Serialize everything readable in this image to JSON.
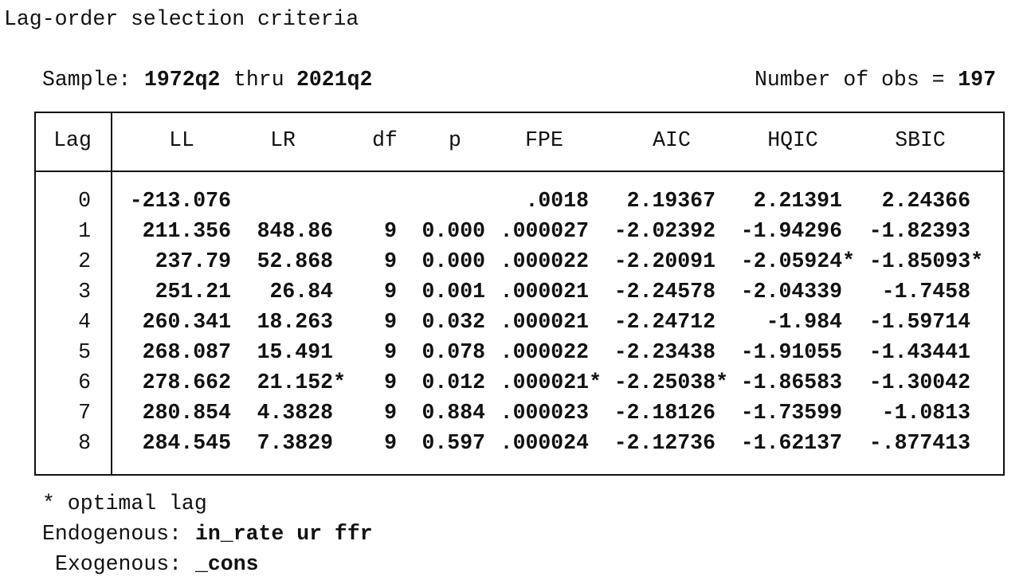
{
  "title": "Lag-order selection criteria",
  "sample": {
    "label": "Sample:",
    "start": "1972q2",
    "thru": "thru",
    "end": "2021q2"
  },
  "obs": {
    "label": "Number of obs =",
    "value": "197"
  },
  "table": {
    "headers": [
      "Lag",
      "LL",
      "LR",
      "df",
      "p",
      "FPE",
      "AIC",
      "HQIC",
      "SBIC"
    ],
    "rows": [
      [
        "0",
        "-213.076",
        null,
        null,
        null,
        ".0018",
        "2.19367",
        "2.21391",
        "2.24366"
      ],
      [
        "1",
        "211.356",
        "848.86",
        "9",
        "0.000",
        ".000027",
        "-2.02392",
        "-1.94296",
        "-1.82393"
      ],
      [
        "2",
        "237.79",
        "52.868",
        "9",
        "0.000",
        ".000022",
        "-2.20091",
        "-2.05924*",
        "-1.85093*"
      ],
      [
        "3",
        "251.21",
        "26.84",
        "9",
        "0.001",
        ".000021",
        "-2.24578",
        "-2.04339",
        "-1.7458"
      ],
      [
        "4",
        "260.341",
        "18.263",
        "9",
        "0.032",
        ".000021",
        "-2.24712",
        "-1.984",
        "-1.59714"
      ],
      [
        "5",
        "268.087",
        "15.491",
        "9",
        "0.078",
        ".000022",
        "-2.23438",
        "-1.91055",
        "-1.43441"
      ],
      [
        "6",
        "278.662",
        "21.152*",
        "9",
        "0.012",
        ".000021*",
        "-2.25038*",
        "-1.86583",
        "-1.30042"
      ],
      [
        "7",
        "280.854",
        "4.3828",
        "9",
        "0.884",
        ".000023",
        "-2.18126",
        "-1.73599",
        "-1.0813"
      ],
      [
        "8",
        "284.545",
        "7.3829",
        "9",
        "0.597",
        ".000024",
        "-2.12736",
        "-1.62137",
        "-.877413"
      ]
    ]
  },
  "footer": {
    "note": "* optimal lag",
    "endogenous": {
      "label": "Endogenous:",
      "value": "in_rate ur ffr"
    },
    "exogenous": {
      "label": "Exogenous:",
      "value": "_cons"
    }
  }
}
